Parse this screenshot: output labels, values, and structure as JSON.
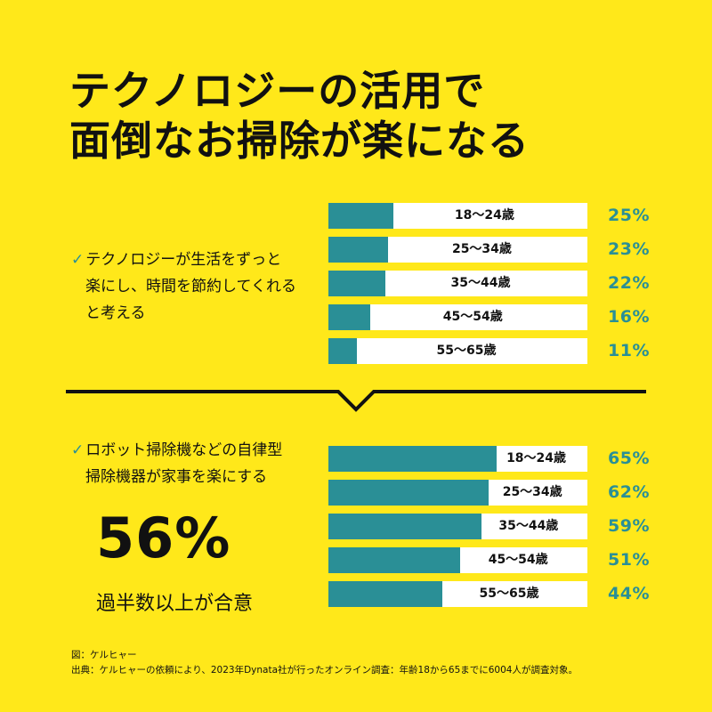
{
  "title": {
    "line1": "テクノロジーの活用で",
    "line2": "面倒なお掃除が楽になる"
  },
  "section1": {
    "check": "✓",
    "claim_lines": [
      "テクノロジーが生活をずっと",
      "楽にし、時間を節約してくれる",
      "と考える"
    ]
  },
  "section2": {
    "check": "✓",
    "claim_lines": [
      "ロボット掃除機などの自律型",
      "掃除機器が家事を楽にする"
    ],
    "headline_value": "56%",
    "headline_caption": "過半数以上が合意"
  },
  "footer": {
    "line1": "図：ケルヒャー",
    "line2": "出典：ケルヒャーの依頼により、2023年Dynata社が行ったオンライン調査：年齢18から65までに6004人が調査対象。"
  },
  "colors": {
    "background": "#FFE81A",
    "bar": "#2A8F96",
    "track": "#FFFFFF",
    "accent_text": "#2A8F96"
  },
  "chart_data": [
    {
      "type": "bar",
      "orientation": "horizontal",
      "categories": [
        "18〜24歳",
        "25〜34歳",
        "35〜44歳",
        "45〜54歳",
        "55〜65歳"
      ],
      "values": [
        25,
        23,
        22,
        16,
        11
      ],
      "value_labels": [
        "25%",
        "23%",
        "22%",
        "16%",
        "11%"
      ],
      "xlim": [
        0,
        100
      ],
      "grid": false
    },
    {
      "type": "bar",
      "orientation": "horizontal",
      "categories": [
        "18〜24歳",
        "25〜34歳",
        "35〜44歳",
        "45〜54歳",
        "55〜65歳"
      ],
      "values": [
        65,
        62,
        59,
        51,
        44
      ],
      "value_labels": [
        "65%",
        "62%",
        "59%",
        "51%",
        "44%"
      ],
      "xlim": [
        0,
        100
      ],
      "grid": false
    }
  ]
}
